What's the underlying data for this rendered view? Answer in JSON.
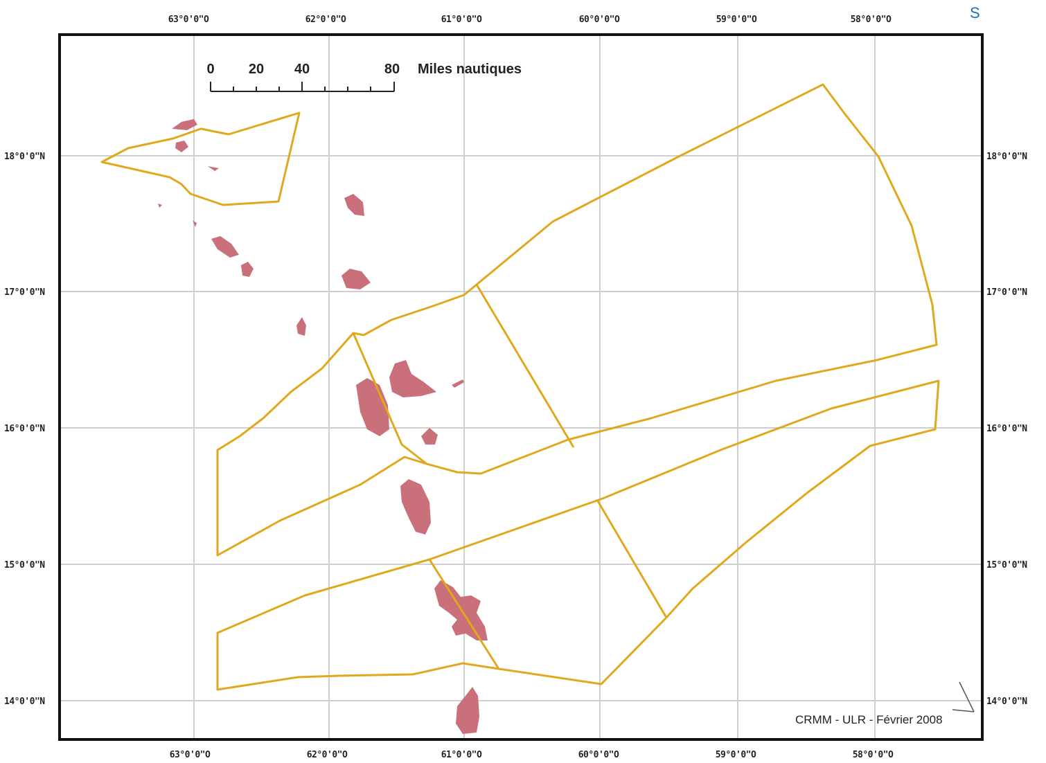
{
  "corner_link": "S",
  "map": {
    "top_lon_labels": [
      "63°0'0\"O",
      "62°0'0\"O",
      "61°0'0\"O",
      "60°0'0\"O",
      "59°0'0\"O",
      "58°0'0\"O"
    ],
    "bottom_lon_labels": [
      "63°0'0\"O",
      "62°0'0\"O",
      "61°0'0\"O",
      "60°0'0\"O",
      "59°0'0\"O",
      "58°0'0\"O"
    ],
    "left_lat_labels": [
      "18°0'0\"N",
      "17°0'0\"N",
      "16°0'0\"N",
      "15°0'0\"N",
      "14°0'0\"N"
    ],
    "right_lat_labels": [
      "18°0'0\"N",
      "17°0'0\"N",
      "16°0'0\"N",
      "15°0'0\"N",
      "14°0'0\"N"
    ],
    "scale_bar": {
      "ticks": [
        "0",
        "20",
        "40",
        "80"
      ],
      "unit": "Miles nautiques"
    },
    "credit": "CRMM - ULR - Février 2008",
    "colors": {
      "boundary": "#e0a81c",
      "island": "#c9707a",
      "grid": "#cfcfcf",
      "frame": "#111111"
    }
  }
}
